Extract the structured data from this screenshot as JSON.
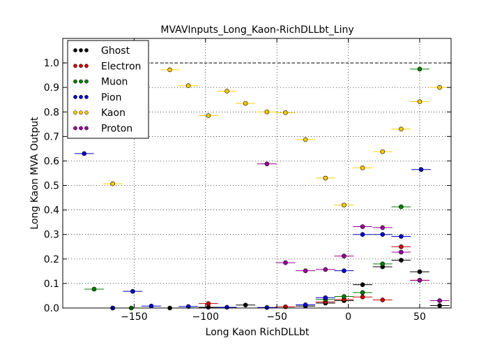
{
  "chart_data": {
    "type": "scatter",
    "title": "MVAVInputs_Long_Kaon-RichDLLbt_Liny",
    "xlabel": "Long Kaon RichDLLbt",
    "ylabel": "Long Kaon MVA Output",
    "xlim": [
      -200,
      72
    ],
    "ylim": [
      0.0,
      1.1
    ],
    "x_ticks": [
      -150,
      -100,
      -50,
      0,
      50
    ],
    "x_tick_labels": [
      "−150",
      "−100",
      "−50",
      "0",
      "50"
    ],
    "y_ticks": [
      0.0,
      0.1,
      0.2,
      0.3,
      0.4,
      0.5,
      0.6,
      0.7,
      0.8,
      0.9,
      1.0
    ],
    "y_tick_labels": [
      "0.0",
      "0.1",
      "0.2",
      "0.3",
      "0.4",
      "0.5",
      "0.6",
      "0.7",
      "0.8",
      "0.9",
      "1.0"
    ],
    "grid": true,
    "reference_line_y": 1.0,
    "legend_position": "top-left",
    "series": [
      {
        "name": "Ghost",
        "color": "#000000",
        "points": [
          {
            "x": -165,
            "y": 0.0
          },
          {
            "x": -125,
            "y": 0.0
          },
          {
            "x": -98,
            "y": 0.003
          },
          {
            "x": -72,
            "y": 0.012
          },
          {
            "x": -30,
            "y": 0.008
          },
          {
            "x": -16,
            "y": 0.02
          },
          {
            "x": -3,
            "y": 0.03
          },
          {
            "x": 10,
            "y": 0.095
          },
          {
            "x": 24,
            "y": 0.168
          },
          {
            "x": 37,
            "y": 0.195
          },
          {
            "x": 50,
            "y": 0.148
          },
          {
            "x": 64,
            "y": 0.01
          }
        ]
      },
      {
        "name": "Electron",
        "color": "#cc0000",
        "points": [
          {
            "x": -98,
            "y": 0.018
          },
          {
            "x": -44,
            "y": 0.005
          },
          {
            "x": -16,
            "y": 0.025
          },
          {
            "x": -3,
            "y": 0.035
          },
          {
            "x": 10,
            "y": 0.045
          },
          {
            "x": 24,
            "y": 0.033
          },
          {
            "x": 37,
            "y": 0.25
          },
          {
            "x": 50,
            "y": 0.113
          }
        ]
      },
      {
        "name": "Muon",
        "color": "#007f00",
        "points": [
          {
            "x": -178,
            "y": 0.077
          },
          {
            "x": -152,
            "y": 0.0
          },
          {
            "x": -16,
            "y": 0.035
          },
          {
            "x": -3,
            "y": 0.047
          },
          {
            "x": 10,
            "y": 0.063
          },
          {
            "x": 24,
            "y": 0.18
          },
          {
            "x": 37,
            "y": 0.413
          },
          {
            "x": 50,
            "y": 0.975
          }
        ]
      },
      {
        "name": "Pion",
        "color": "#0000cc",
        "points": [
          {
            "x": -185,
            "y": 0.63
          },
          {
            "x": -165,
            "y": 0.0
          },
          {
            "x": -151,
            "y": 0.068
          },
          {
            "x": -138,
            "y": 0.008
          },
          {
            "x": -112,
            "y": 0.006
          },
          {
            "x": -85,
            "y": 0.003
          },
          {
            "x": -57,
            "y": 0.002
          },
          {
            "x": -30,
            "y": 0.013
          },
          {
            "x": -16,
            "y": 0.042
          },
          {
            "x": -3,
            "y": 0.152
          },
          {
            "x": 10,
            "y": 0.3
          },
          {
            "x": 24,
            "y": 0.3
          },
          {
            "x": 37,
            "y": 0.292
          },
          {
            "x": 51,
            "y": 0.565
          }
        ]
      },
      {
        "name": "Kaon",
        "color": "#ffcc00",
        "points": [
          {
            "x": -165,
            "y": 0.507
          },
          {
            "x": -125,
            "y": 0.972
          },
          {
            "x": -112,
            "y": 0.907
          },
          {
            "x": -98,
            "y": 0.785
          },
          {
            "x": -85,
            "y": 0.885
          },
          {
            "x": -72,
            "y": 0.835
          },
          {
            "x": -57,
            "y": 0.8
          },
          {
            "x": -44,
            "y": 0.797
          },
          {
            "x": -30,
            "y": 0.687
          },
          {
            "x": -16,
            "y": 0.53
          },
          {
            "x": -3,
            "y": 0.42
          },
          {
            "x": 10,
            "y": 0.572
          },
          {
            "x": 24,
            "y": 0.638
          },
          {
            "x": 37,
            "y": 0.73
          },
          {
            "x": 50,
            "y": 0.842
          },
          {
            "x": 64,
            "y": 0.9
          }
        ]
      },
      {
        "name": "Proton",
        "color": "#990099",
        "points": [
          {
            "x": -57,
            "y": 0.588
          },
          {
            "x": -44,
            "y": 0.185
          },
          {
            "x": -30,
            "y": 0.152
          },
          {
            "x": -16,
            "y": 0.157
          },
          {
            "x": -3,
            "y": 0.212
          },
          {
            "x": 10,
            "y": 0.332
          },
          {
            "x": 24,
            "y": 0.328
          },
          {
            "x": 37,
            "y": 0.228
          },
          {
            "x": 50,
            "y": 0.113
          },
          {
            "x": 64,
            "y": 0.03
          }
        ]
      }
    ]
  }
}
